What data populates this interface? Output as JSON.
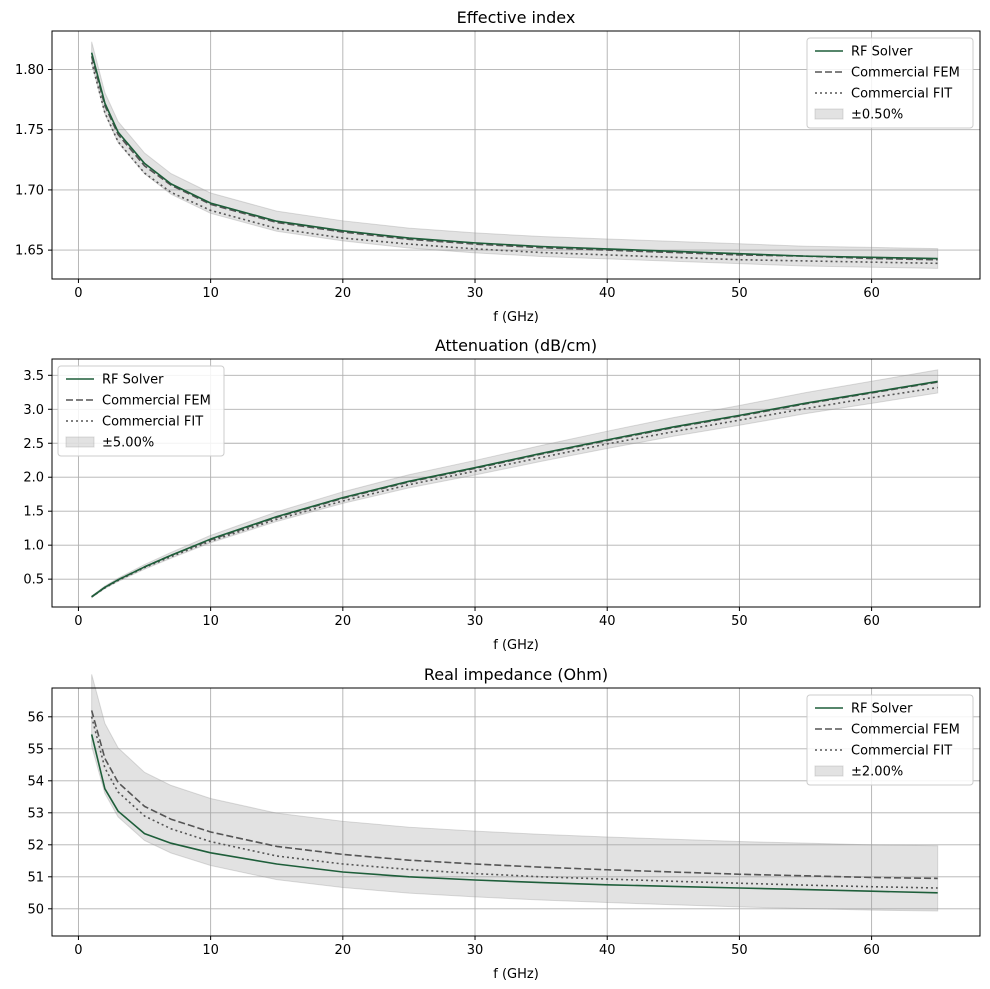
{
  "chart_data": [
    {
      "type": "line",
      "title": "Effective index",
      "xlabel": "f (GHz)",
      "ylabel": "",
      "xlim": [
        -2,
        68.2
      ],
      "ylim": [
        1.626,
        1.832
      ],
      "xticks": [
        0,
        10,
        20,
        30,
        40,
        50,
        60
      ],
      "yticks": [
        1.65,
        1.7,
        1.75,
        1.8
      ],
      "ytick_decimals": 2,
      "grid": true,
      "legend_position": "top-right",
      "band_label": "±0.50%",
      "band_reference": "RF Solver",
      "band_fraction": 0.005,
      "x": [
        1,
        2,
        3,
        5,
        7,
        10,
        15,
        20,
        25,
        30,
        35,
        40,
        45,
        50,
        55,
        60,
        65
      ],
      "series": [
        {
          "name": "RF Solver",
          "style": "solid",
          "color": "#1e5e3a",
          "values": [
            1.814,
            1.772,
            1.748,
            1.722,
            1.705,
            1.689,
            1.674,
            1.666,
            1.66,
            1.656,
            1.653,
            1.651,
            1.649,
            1.647,
            1.645,
            1.644,
            1.643
          ]
        },
        {
          "name": "Commercial FEM",
          "style": "dashed",
          "color": "#555555",
          "values": [
            1.811,
            1.77,
            1.746,
            1.72,
            1.704,
            1.688,
            1.673,
            1.665,
            1.659,
            1.655,
            1.652,
            1.65,
            1.648,
            1.646,
            1.645,
            1.643,
            1.642
          ]
        },
        {
          "name": "Commercial FIT",
          "style": "dotted",
          "color": "#555555",
          "values": [
            1.806,
            1.764,
            1.74,
            1.714,
            1.698,
            1.683,
            1.668,
            1.66,
            1.655,
            1.651,
            1.648,
            1.646,
            1.644,
            1.642,
            1.641,
            1.64,
            1.639
          ]
        }
      ]
    },
    {
      "type": "line",
      "title": "Attenuation (dB/cm)",
      "xlabel": "f (GHz)",
      "ylabel": "",
      "xlim": [
        -2,
        68.2
      ],
      "ylim": [
        0.09,
        3.74
      ],
      "xticks": [
        0,
        10,
        20,
        30,
        40,
        50,
        60
      ],
      "yticks": [
        0.5,
        1.0,
        1.5,
        2.0,
        2.5,
        3.0,
        3.5
      ],
      "ytick_decimals": 1,
      "grid": true,
      "legend_position": "top-left",
      "band_label": "±5.00%",
      "band_reference": "RF Solver",
      "band_fraction": 0.05,
      "x": [
        1,
        2,
        3,
        5,
        7,
        10,
        15,
        20,
        25,
        30,
        35,
        40,
        45,
        50,
        55,
        60,
        65
      ],
      "series": [
        {
          "name": "RF Solver",
          "style": "solid",
          "color": "#1e5e3a",
          "values": [
            0.24,
            0.38,
            0.49,
            0.68,
            0.85,
            1.09,
            1.42,
            1.7,
            1.94,
            2.14,
            2.35,
            2.55,
            2.74,
            2.91,
            3.09,
            3.25,
            3.41
          ]
        },
        {
          "name": "Commercial FEM",
          "style": "dashed",
          "color": "#555555",
          "values": [
            0.24,
            0.38,
            0.49,
            0.68,
            0.85,
            1.08,
            1.41,
            1.69,
            1.93,
            2.13,
            2.34,
            2.54,
            2.73,
            2.9,
            3.08,
            3.24,
            3.4
          ]
        },
        {
          "name": "Commercial FIT",
          "style": "dotted",
          "color": "#555555",
          "values": [
            0.24,
            0.37,
            0.48,
            0.67,
            0.83,
            1.06,
            1.38,
            1.65,
            1.89,
            2.09,
            2.29,
            2.49,
            2.67,
            2.84,
            3.01,
            3.17,
            3.32
          ]
        }
      ]
    },
    {
      "type": "line",
      "title": "Real impedance (Ohm)",
      "xlabel": "f (GHz)",
      "ylabel": "",
      "xlim": [
        -2,
        68.2
      ],
      "ylim": [
        49.15,
        56.9
      ],
      "xticks": [
        0,
        10,
        20,
        30,
        40,
        50,
        60
      ],
      "yticks": [
        50,
        51,
        52,
        53,
        54,
        55,
        56
      ],
      "ytick_decimals": 0,
      "grid": true,
      "legend_position": "top-right",
      "band_label": "±2.00%",
      "band_reference": "Commercial FEM",
      "band_fraction": 0.02,
      "x": [
        1,
        2,
        3,
        5,
        7,
        10,
        15,
        20,
        25,
        30,
        35,
        40,
        45,
        50,
        55,
        60,
        65
      ],
      "series": [
        {
          "name": "RF Solver",
          "style": "solid",
          "color": "#1e5e3a",
          "values": [
            55.45,
            53.75,
            53.05,
            52.35,
            52.05,
            51.75,
            51.4,
            51.15,
            51.0,
            50.9,
            50.82,
            50.75,
            50.7,
            50.65,
            50.6,
            50.55,
            50.5
          ]
        },
        {
          "name": "Commercial FEM",
          "style": "dashed",
          "color": "#555555",
          "values": [
            56.2,
            54.7,
            53.95,
            53.2,
            52.8,
            52.4,
            51.95,
            51.7,
            51.52,
            51.4,
            51.3,
            51.22,
            51.15,
            51.08,
            51.03,
            50.98,
            50.95
          ]
        },
        {
          "name": "Commercial FIT",
          "style": "dotted",
          "color": "#555555",
          "values": [
            56.0,
            54.4,
            53.65,
            52.9,
            52.5,
            52.1,
            51.65,
            51.4,
            51.23,
            51.1,
            51.0,
            50.93,
            50.86,
            50.8,
            50.74,
            50.69,
            50.65
          ]
        }
      ]
    }
  ]
}
